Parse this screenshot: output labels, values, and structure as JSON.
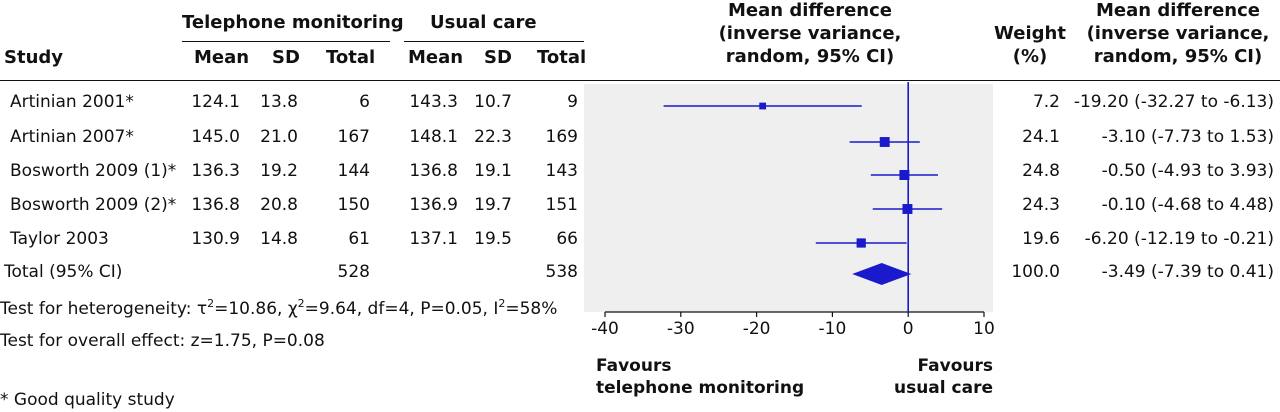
{
  "header": {
    "group1": "Telephone monitoring",
    "group2": "Usual care",
    "study": "Study",
    "mean1": "Mean",
    "sd1": "SD",
    "total1": "Total",
    "mean2": "Mean",
    "sd2": "SD",
    "total2": "Total",
    "md_line1": "Mean difference",
    "md_line2": "(inverse variance,",
    "md_line3": "random, 95% CI)",
    "weight_line1": "Weight",
    "weight_line2": "(%)",
    "md2_line1": "Mean difference",
    "md2_line2": "(inverse variance,",
    "md2_line3": "random, 95% CI)"
  },
  "rows": [
    {
      "study": "Artinian 2001*",
      "m1": "124.1",
      "sd1": "13.8",
      "n1": "6",
      "m2": "143.3",
      "sd2": "10.7",
      "n2": "9",
      "weight": "7.2",
      "ci": "-19.20 (-32.27 to -6.13)"
    },
    {
      "study": "Artinian 2007*",
      "m1": "145.0",
      "sd1": "21.0",
      "n1": "167",
      "m2": "148.1",
      "sd2": "22.3",
      "n2": "169",
      "weight": "24.1",
      "ci": "-3.10 (-7.73 to 1.53)"
    },
    {
      "study": "Bosworth 2009 (1)*",
      "m1": "136.3",
      "sd1": "19.2",
      "n1": "144",
      "m2": "136.8",
      "sd2": "19.1",
      "n2": "143",
      "weight": "24.8",
      "ci": "-0.50 (-4.93 to 3.93)"
    },
    {
      "study": "Bosworth 2009 (2)*",
      "m1": "136.8",
      "sd1": "20.8",
      "n1": "150",
      "m2": "136.9",
      "sd2": "19.7",
      "n2": "151",
      "weight": "24.3",
      "ci": "-0.10 (-4.68 to 4.48)"
    },
    {
      "study": "Taylor 2003",
      "m1": "130.9",
      "sd1": "14.8",
      "n1": "61",
      "m2": "137.1",
      "sd2": "19.5",
      "n2": "66",
      "weight": "19.6",
      "ci": "-6.20 (-12.19 to -0.21)"
    }
  ],
  "total": {
    "label": "Total (95% CI)",
    "n1": "528",
    "n2": "538",
    "weight": "100.0",
    "ci": "-3.49 (-7.39 to 0.41)"
  },
  "heterogeneity": {
    "prefix": "Test for heterogeneity: τ",
    "tau_sup": "2",
    "tau_val": "=10.86, χ",
    "chi_sup": "2",
    "chi_val": "=9.64, df=4, P=0.05, I",
    "i_sup": "2",
    "i_val": "=58%"
  },
  "overall_effect": "Test for overall effect: z=1.75, P=0.08",
  "footnote": "* Good quality study",
  "favours_left_1": "Favours",
  "favours_left_2": "telephone monitoring",
  "favours_right_1": "Favours",
  "favours_right_2": "usual care",
  "colors": {
    "marker": "#1a1acc",
    "plot_bg": "#efefef",
    "zero_line": "#1a1acc"
  },
  "chart_data": {
    "type": "forest",
    "xlim": [
      -40,
      10
    ],
    "xticks": [
      -40,
      -30,
      -20,
      -10,
      0,
      10
    ],
    "reference_line": 0,
    "studies": [
      {
        "name": "Artinian 2001*",
        "md": -19.2,
        "lo": -32.27,
        "hi": -6.13,
        "weight": 7.2
      },
      {
        "name": "Artinian 2007*",
        "md": -3.1,
        "lo": -7.73,
        "hi": 1.53,
        "weight": 24.1
      },
      {
        "name": "Bosworth 2009 (1)*",
        "md": -0.5,
        "lo": -4.93,
        "hi": 3.93,
        "weight": 24.8
      },
      {
        "name": "Bosworth 2009 (2)*",
        "md": -0.1,
        "lo": -4.68,
        "hi": 4.48,
        "weight": 24.3
      },
      {
        "name": "Taylor 2003",
        "md": -6.2,
        "lo": -12.19,
        "hi": -0.21,
        "weight": 19.6
      }
    ],
    "pooled": {
      "md": -3.49,
      "lo": -7.39,
      "hi": 0.41
    }
  }
}
